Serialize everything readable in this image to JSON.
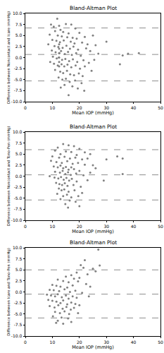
{
  "chart_data": [
    {
      "type": "scatter",
      "title": "Bland-Altman Plot",
      "x_label": "Mean IOP (mmHg)",
      "y_label": "Difference between Noncontact and Icare (mmHg)",
      "color": "#808080",
      "marker": "circle",
      "line_style": "dashed",
      "grid": false,
      "xlim": [
        0,
        50
      ],
      "xticks": [
        0,
        10,
        20,
        30,
        40,
        50
      ],
      "ylim": [
        -10,
        10
      ],
      "yticks": [
        {
          "value": -10,
          "label": "-10.0"
        },
        {
          "value": -7.5,
          "label": "-7.5"
        },
        {
          "value": -5,
          "label": "-5.0"
        },
        {
          "value": -2.5,
          "label": "-2.5"
        },
        {
          "value": 0,
          "label": "0.0"
        },
        {
          "value": 2.5,
          "label": "2.5"
        },
        {
          "value": 5,
          "label": "5.0"
        },
        {
          "value": 7.5,
          "label": "7.5"
        },
        {
          "value": 10,
          "label": "10.0"
        }
      ],
      "reference_lines": [
        6.7,
        0.7,
        -5.3
      ],
      "x": [
        11.8,
        9.5,
        10.5,
        12.5,
        15,
        17,
        18.5,
        13,
        11,
        14,
        16,
        20,
        9,
        12,
        13.5,
        15.5,
        17.5,
        19,
        22,
        25,
        10,
        11.5,
        12.8,
        14.2,
        16.8,
        18.2,
        21,
        23,
        26,
        30,
        8.5,
        10.8,
        12.2,
        13.8,
        15.2,
        16.5,
        17.8,
        19.5,
        22.5,
        24,
        9.8,
        11.2,
        12.6,
        13.2,
        14.6,
        15.8,
        17.2,
        18.8,
        20.5,
        27,
        36,
        42,
        38,
        10.2,
        11.6,
        12.4,
        13.6,
        14.8,
        16.2,
        17.6,
        19.2,
        21.5,
        23.5,
        25.5,
        35,
        9.2,
        10.6,
        12.0,
        13.4,
        14.4,
        15.6,
        17.0,
        18.6,
        20.2,
        22.0,
        24.5,
        11.0,
        12.9,
        14.0,
        15.4,
        16.6,
        18.0,
        19.8,
        21.2,
        12.3,
        13.7,
        15.0,
        16.4,
        18.4,
        20.8,
        14.5,
        17.4,
        19.4,
        16.0,
        21.8,
        13.1,
        12.5,
        12.5,
        12.5,
        12.5,
        12.5,
        12.5
      ],
      "values": [
        8.8,
        7.5,
        7.0,
        7.2,
        7.6,
        7.5,
        6.6,
        6.3,
        6.0,
        5.8,
        5.5,
        5.6,
        5.2,
        5.0,
        4.8,
        4.6,
        4.5,
        4.3,
        4.7,
        5.0,
        4.0,
        3.8,
        3.5,
        3.9,
        3.6,
        3.2,
        3.4,
        3.0,
        2.8,
        3.6,
        3.0,
        2.6,
        2.4,
        2.2,
        2.7,
        2.0,
        2.5,
        1.8,
        2.1,
        1.5,
        1.6,
        1.2,
        1.0,
        1.5,
        0.8,
        1.3,
        0.6,
        1.0,
        0.4,
        0.9,
        0.5,
        1.0,
        0.9,
        0.2,
        -0.2,
        0.0,
        -0.5,
        -0.3,
        -0.8,
        -0.4,
        -1.0,
        -0.6,
        -1.2,
        -0.5,
        -1.5,
        -1.0,
        -1.4,
        -1.8,
        -1.5,
        -2.0,
        -1.6,
        -2.2,
        -1.8,
        -2.5,
        -2.0,
        -3.0,
        -2.8,
        -3.2,
        -3.5,
        -3.0,
        -3.8,
        -4.0,
        -3.6,
        -4.2,
        -4.5,
        -5.0,
        -4.8,
        -5.5,
        -5.2,
        -5.8,
        -6.2,
        -6.5,
        -7.0,
        -8.5,
        -7.5,
        -6.8,
        3.0,
        2.0,
        1.0,
        0.0,
        -1.0,
        -2.0
      ]
    },
    {
      "type": "scatter",
      "title": "Bland-Altman Plot",
      "x_label": "Mean IOP (mmHg)",
      "y_label": "Difference between Noncontact and Tono-Pen (mmHg)",
      "color": "#808080",
      "marker": "circle",
      "line_style": "dashed",
      "grid": false,
      "xlim": [
        0,
        50
      ],
      "xticks": [
        0,
        10,
        20,
        30,
        40,
        50
      ],
      "ylim": [
        -10,
        10
      ],
      "yticks": [
        {
          "value": -10,
          "label": "-10.0"
        },
        {
          "value": -7.5,
          "label": "-7.5"
        },
        {
          "value": -5,
          "label": "-5.0"
        },
        {
          "value": -2.5,
          "label": "-2.5"
        },
        {
          "value": 0,
          "label": "0.0"
        },
        {
          "value": 2.5,
          "label": "2.5"
        },
        {
          "value": 5,
          "label": "5.0"
        },
        {
          "value": 7.5,
          "label": "7.5"
        },
        {
          "value": 10,
          "label": "10.0"
        }
      ],
      "reference_lines": [
        6.0,
        0.3,
        -5.4
      ],
      "x": [
        14,
        16,
        18,
        12,
        20,
        11,
        15,
        17,
        22,
        13,
        19,
        24,
        10,
        12.5,
        14.5,
        16.5,
        18.5,
        21,
        23,
        30,
        34,
        36,
        9.5,
        11.5,
        13.5,
        15.5,
        17.5,
        19.5,
        22,
        25,
        10.5,
        12,
        13,
        14,
        15,
        16,
        17,
        18,
        20,
        26,
        11,
        12.8,
        13.8,
        14.8,
        15.8,
        16.8,
        18.8,
        21.5,
        24,
        36,
        9,
        10.8,
        12.2,
        13.2,
        14.2,
        15.2,
        16.2,
        17.2,
        19,
        23,
        29,
        11.4,
        12.6,
        13.6,
        14.6,
        15.6,
        17.8,
        20.5,
        12.4,
        13.4,
        14.4,
        16,
        18.2,
        21,
        11.8,
        14,
        15.4,
        17,
        19.6,
        13,
        16.4,
        18.6,
        14.8,
        20,
        15.8
      ],
      "values": [
        7.3,
        7.0,
        6.8,
        6.5,
        6.2,
        5.8,
        5.6,
        5.5,
        5.4,
        5.0,
        4.8,
        5.0,
        4.5,
        4.2,
        4.4,
        4.0,
        4.2,
        3.8,
        4.0,
        3.8,
        4.5,
        4.0,
        3.5,
        3.2,
        3.0,
        3.4,
        2.8,
        3.0,
        2.6,
        2.5,
        2.2,
        2.0,
        2.4,
        1.8,
        2.1,
        1.5,
        2.0,
        1.6,
        1.2,
        1.8,
        1.0,
        0.8,
        1.2,
        0.5,
        0.9,
        0.3,
        0.6,
        0.2,
        0.8,
        0.5,
        0.0,
        -0.3,
        -0.5,
        -0.2,
        -0.8,
        -0.4,
        -1.0,
        -0.6,
        -1.2,
        -0.9,
        -1.0,
        -1.5,
        -1.8,
        -2.0,
        -1.6,
        -2.2,
        -2.0,
        -2.4,
        -2.8,
        -3.2,
        -3.0,
        -3.5,
        -3.2,
        -3.8,
        -4.0,
        -4.5,
        -4.2,
        -4.8,
        -4.5,
        -5.2,
        -5.5,
        -5.8,
        -6.3,
        -6.8,
        -7.1
      ]
    },
    {
      "type": "scatter",
      "title": "Bland-Altman Plot",
      "x_label": "Mean IOP (mmHg)",
      "y_label": "Difference between Icare and Tono-Pen (mmHg)",
      "color": "#808080",
      "marker": "circle",
      "line_style": "dashed",
      "grid": false,
      "xlim": [
        0,
        50
      ],
      "xticks": [
        0,
        10,
        20,
        30,
        40,
        50
      ],
      "ylim": [
        -10,
        10
      ],
      "yticks": [
        {
          "value": -10,
          "label": "-10.0"
        },
        {
          "value": -7.5,
          "label": "-7.5"
        },
        {
          "value": -5,
          "label": "-5.0"
        },
        {
          "value": -2.5,
          "label": "-2.5"
        },
        {
          "value": 0,
          "label": "0.0"
        },
        {
          "value": 2.5,
          "label": "2.5"
        },
        {
          "value": 5,
          "label": "5.0"
        },
        {
          "value": 7.5,
          "label": "7.5"
        },
        {
          "value": 10,
          "label": "10.0"
        }
      ],
      "reference_lines": [
        5.0,
        -0.5,
        -5.9
      ],
      "x": [
        27,
        22,
        20.5,
        27.5,
        21.5,
        25,
        26,
        19,
        23,
        17,
        15,
        18,
        20,
        12,
        14,
        16,
        19.5,
        22.5,
        10,
        11.5,
        13,
        15.5,
        17.5,
        24,
        9,
        10.5,
        12.5,
        14.5,
        16.5,
        18.5,
        21,
        8,
        9.5,
        11,
        12,
        13.5,
        15,
        16,
        17.5,
        19,
        23.5,
        8.5,
        10,
        11.5,
        13,
        14,
        15.5,
        17,
        18.5,
        20,
        9,
        10.8,
        12.2,
        13.8,
        15.2,
        16.8,
        18,
        11,
        12.8,
        14.5,
        16.2,
        19.5,
        10.2,
        13.4,
        15.8,
        12,
        14,
        17,
        11.4
      ],
      "values": [
        9.6,
        7.2,
        6.1,
        6.0,
        5.5,
        5.3,
        4.7,
        4.4,
        4.0,
        3.8,
        3.5,
        3.0,
        3.2,
        2.8,
        2.5,
        2.2,
        2.4,
        1.8,
        1.6,
        1.4,
        1.2,
        1.0,
        1.5,
        1.2,
        0.5,
        0.4,
        0.2,
        0.6,
        0.0,
        0.3,
        -0.2,
        -0.6,
        -0.8,
        -1.0,
        -0.5,
        -1.2,
        -0.8,
        -1.5,
        -1.0,
        -1.3,
        -1.0,
        -1.8,
        -2.0,
        -2.2,
        -2.5,
        -1.9,
        -2.8,
        -2.4,
        -2.7,
        -3.0,
        -3.2,
        -3.5,
        -3.0,
        -3.8,
        -3.4,
        -4.0,
        -3.6,
        -4.5,
        -4.8,
        -4.4,
        -5.0,
        -4.8,
        -5.5,
        -5.8,
        -6.0,
        -6.5,
        -7.2,
        -6.8,
        -7.0
      ]
    }
  ]
}
